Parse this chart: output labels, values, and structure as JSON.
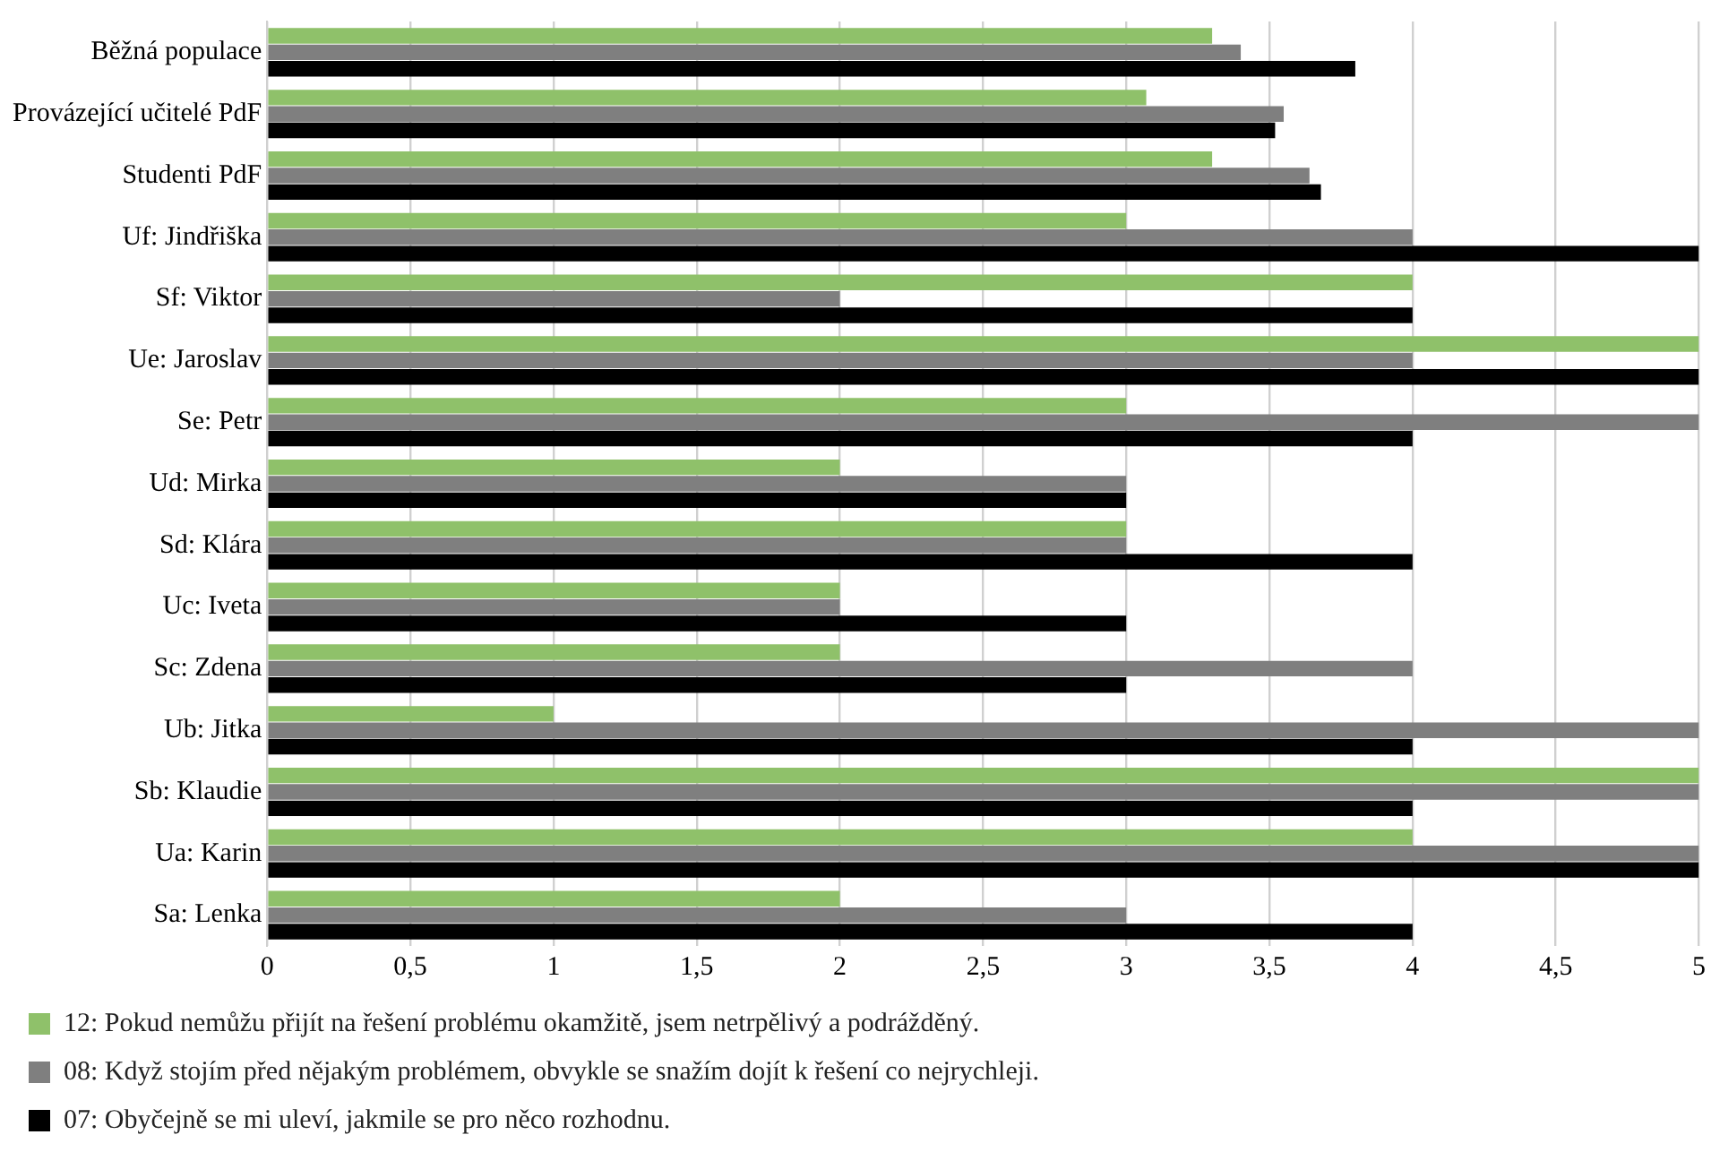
{
  "chart_data": {
    "type": "bar",
    "orientation": "horizontal",
    "categories": [
      "Běžná populace",
      "Provázející učitelé PdF",
      "Studenti PdF",
      "Uf: Jindřiška",
      "Sf: Viktor",
      "Ue: Jaroslav",
      "Se: Petr",
      "Ud: Mirka",
      "Sd: Klára",
      "Uc: Iveta",
      "Sc: Zdena",
      "Ub: Jitka",
      "Sb: Klaudie",
      "Ua: Karin",
      "Sa: Lenka"
    ],
    "series": [
      {
        "name": "12: Pokud nemůžu přijít na řešení problému okamžitě, jsem netrpělivý a podrážděný.",
        "color": "#8fc16a",
        "values": [
          3.3,
          3.07,
          3.3,
          3,
          4,
          5,
          3,
          2,
          3,
          2,
          2,
          1,
          5,
          4,
          2
        ]
      },
      {
        "name": "08: Když stojím před nějakým problémem, obvykle se snažím dojít k řešení co nejrychleji.",
        "color": "#7f7f7f",
        "values": [
          3.4,
          3.55,
          3.64,
          4,
          2,
          4,
          5,
          3,
          3,
          2,
          4,
          5,
          5,
          5,
          3
        ]
      },
      {
        "name": "07: Obyčejně se mi uleví, jakmile se pro něco rozhodnu.",
        "color": "#000000",
        "values": [
          3.8,
          3.52,
          3.68,
          5,
          4,
          5,
          4,
          3,
          4,
          3,
          3,
          4,
          4,
          5,
          4
        ]
      }
    ],
    "xlim": [
      0,
      5
    ],
    "xticks": [
      0,
      {
        "value": 0.5,
        "label": "0,5"
      },
      1,
      {
        "value": 1.5,
        "label": "1,5"
      },
      2,
      {
        "value": 2.5,
        "label": "2,5"
      },
      3,
      {
        "value": 3.5,
        "label": "3,5"
      },
      4,
      {
        "value": 4.5,
        "label": "4,5"
      },
      5
    ],
    "grid": "x",
    "legend": "bottom"
  }
}
